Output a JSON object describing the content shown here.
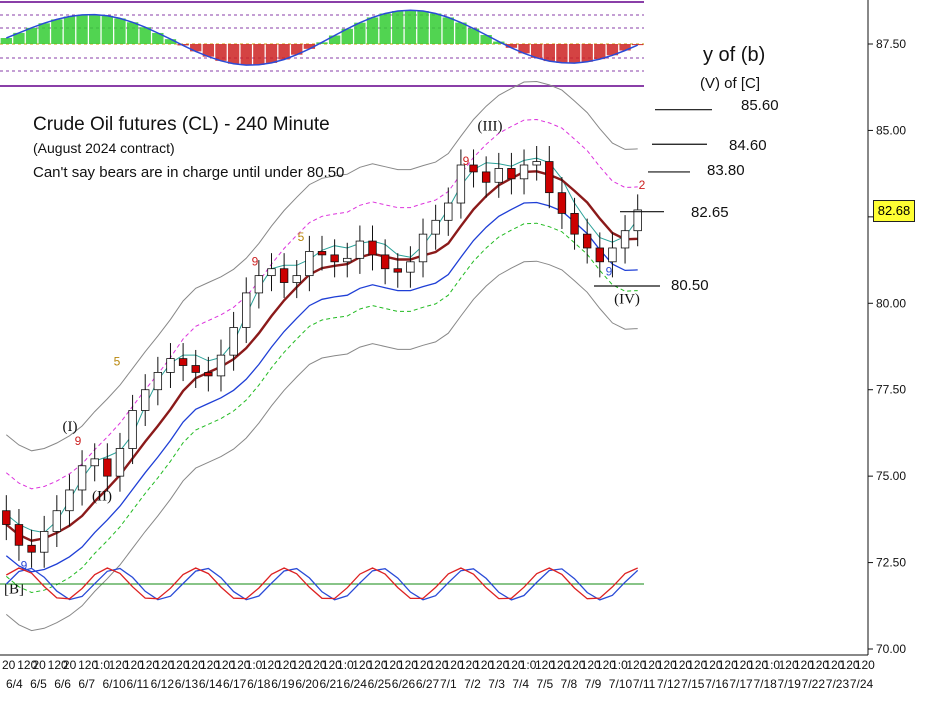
{
  "annotations": {
    "title": "Crude Oil futures (CL) - 240 Minute",
    "subtitle": "(August 2024 contract)",
    "note": "Can't say bears are in charge until under 80.50",
    "wave_label": "y of (b)",
    "wave_label_2": "(V) of [C]"
  },
  "levels": [
    {
      "label": "85.60",
      "value": 85.6
    },
    {
      "label": "84.60",
      "value": 84.6
    },
    {
      "label": "83.80",
      "value": 83.8
    },
    {
      "label": "82.65",
      "value": 82.65
    },
    {
      "label": "80.50",
      "value": 80.5
    }
  ],
  "current_price": "82.68",
  "colors": {
    "up": "#ffffff",
    "down": "#cc0000",
    "ma_main": "#8b1a1a",
    "ma_fast": "#2aa198",
    "lower_band": "#1f3fd6",
    "env_green": "#22bb22",
    "env_magenta": "#dd33dd",
    "env_gray": "#888888",
    "osc_green": "#33cc33",
    "osc_red": "#cc2222"
  },
  "chart_data": {
    "type": "candlestick",
    "title": "Crude Oil futures (CL) - 240 Minute",
    "subtitle": "(August 2024 contract)",
    "ylim": [
      70.0,
      88.7
    ],
    "y_ticks": [
      "87.50",
      "85.00",
      "82.50",
      "80.00",
      "77.50",
      "75.00",
      "72.50",
      "70.00"
    ],
    "x_date_labels": [
      "6/4",
      "6/5",
      "6/6",
      "6/7",
      "6/10",
      "6/11",
      "6/12",
      "6/13",
      "6/14",
      "6/17",
      "6/18",
      "6/19",
      "6/20",
      "6/21",
      "6/24",
      "6/25",
      "6/26",
      "6/27",
      "7/1",
      "7/2",
      "7/3",
      "7/4",
      "7/5",
      "7/8",
      "7/9",
      "7/10",
      "7/11",
      "7/12",
      "7/15",
      "7/16",
      "7/17",
      "7/18",
      "7/19",
      "7/22",
      "7/23",
      "7/24"
    ],
    "x_tick_labels_top": [
      "20",
      "120",
      "20",
      "120",
      "20",
      "120",
      "1:0",
      "120",
      "120",
      "120",
      "120",
      "120",
      "120",
      "120",
      "120",
      "120",
      "1:0",
      "120",
      "120",
      "120",
      "120",
      "120",
      "1:0",
      "120",
      "120",
      "120",
      "120",
      "120",
      "120",
      "120",
      "120",
      "120",
      "120",
      "120",
      "1:0",
      "120",
      "120",
      "120",
      "120",
      "120",
      "1:0",
      "120",
      "120",
      "120",
      "120",
      "120",
      "120",
      "120",
      "120",
      "120",
      "1:0",
      "120",
      "120",
      "120",
      "120",
      "120",
      "120"
    ],
    "closes": [
      73.6,
      73.0,
      72.8,
      73.4,
      74.0,
      74.6,
      75.3,
      75.5,
      75.0,
      75.8,
      76.9,
      77.5,
      78.0,
      78.4,
      78.2,
      78.0,
      77.9,
      78.5,
      79.3,
      80.3,
      80.8,
      81.0,
      80.6,
      80.8,
      81.5,
      81.4,
      81.2,
      81.3,
      81.8,
      81.4,
      81.0,
      80.9,
      81.2,
      82.0,
      82.4,
      82.9,
      84.0,
      83.8,
      83.5,
      83.9,
      83.6,
      84.0,
      84.1,
      83.2,
      82.6,
      82.0,
      81.6,
      81.2,
      81.6,
      82.1,
      82.7
    ],
    "series": [
      {
        "name": "Crude Oil (CL) 240 min",
        "type": "candles"
      },
      {
        "type": "moving-average"
      },
      {
        "type": "envelope"
      }
    ],
    "wave_labels": [
      {
        "text": "[B]",
        "x_date": "6/4",
        "y": 71.6
      },
      {
        "text": "(I)",
        "x_date": "6/6",
        "y": 76.3
      },
      {
        "text": "(II)",
        "x_date": "6/7",
        "y": 74.3
      },
      {
        "text": "(III)",
        "x_date": "7/2",
        "y": 85.0
      },
      {
        "text": "(IV)",
        "x_date": "7/9",
        "y": 80.0
      }
    ],
    "count_labels": [
      {
        "text": "9",
        "color": "#2a4bd7",
        "y": 72.3
      },
      {
        "text": "9",
        "color": "#cc2222",
        "y": 75.9
      },
      {
        "text": "5",
        "color": "#b8860b",
        "y": 78.2
      },
      {
        "text": "9",
        "color": "#cc2222",
        "y": 81.1
      },
      {
        "text": "5",
        "color": "#b8860b",
        "y": 81.8
      },
      {
        "text": "9",
        "color": "#cc2222",
        "y": 84.0
      },
      {
        "text": "9",
        "color": "#2a4bd7",
        "y": 80.8
      },
      {
        "text": "2",
        "color": "#cc2222",
        "y": 83.3
      }
    ]
  }
}
